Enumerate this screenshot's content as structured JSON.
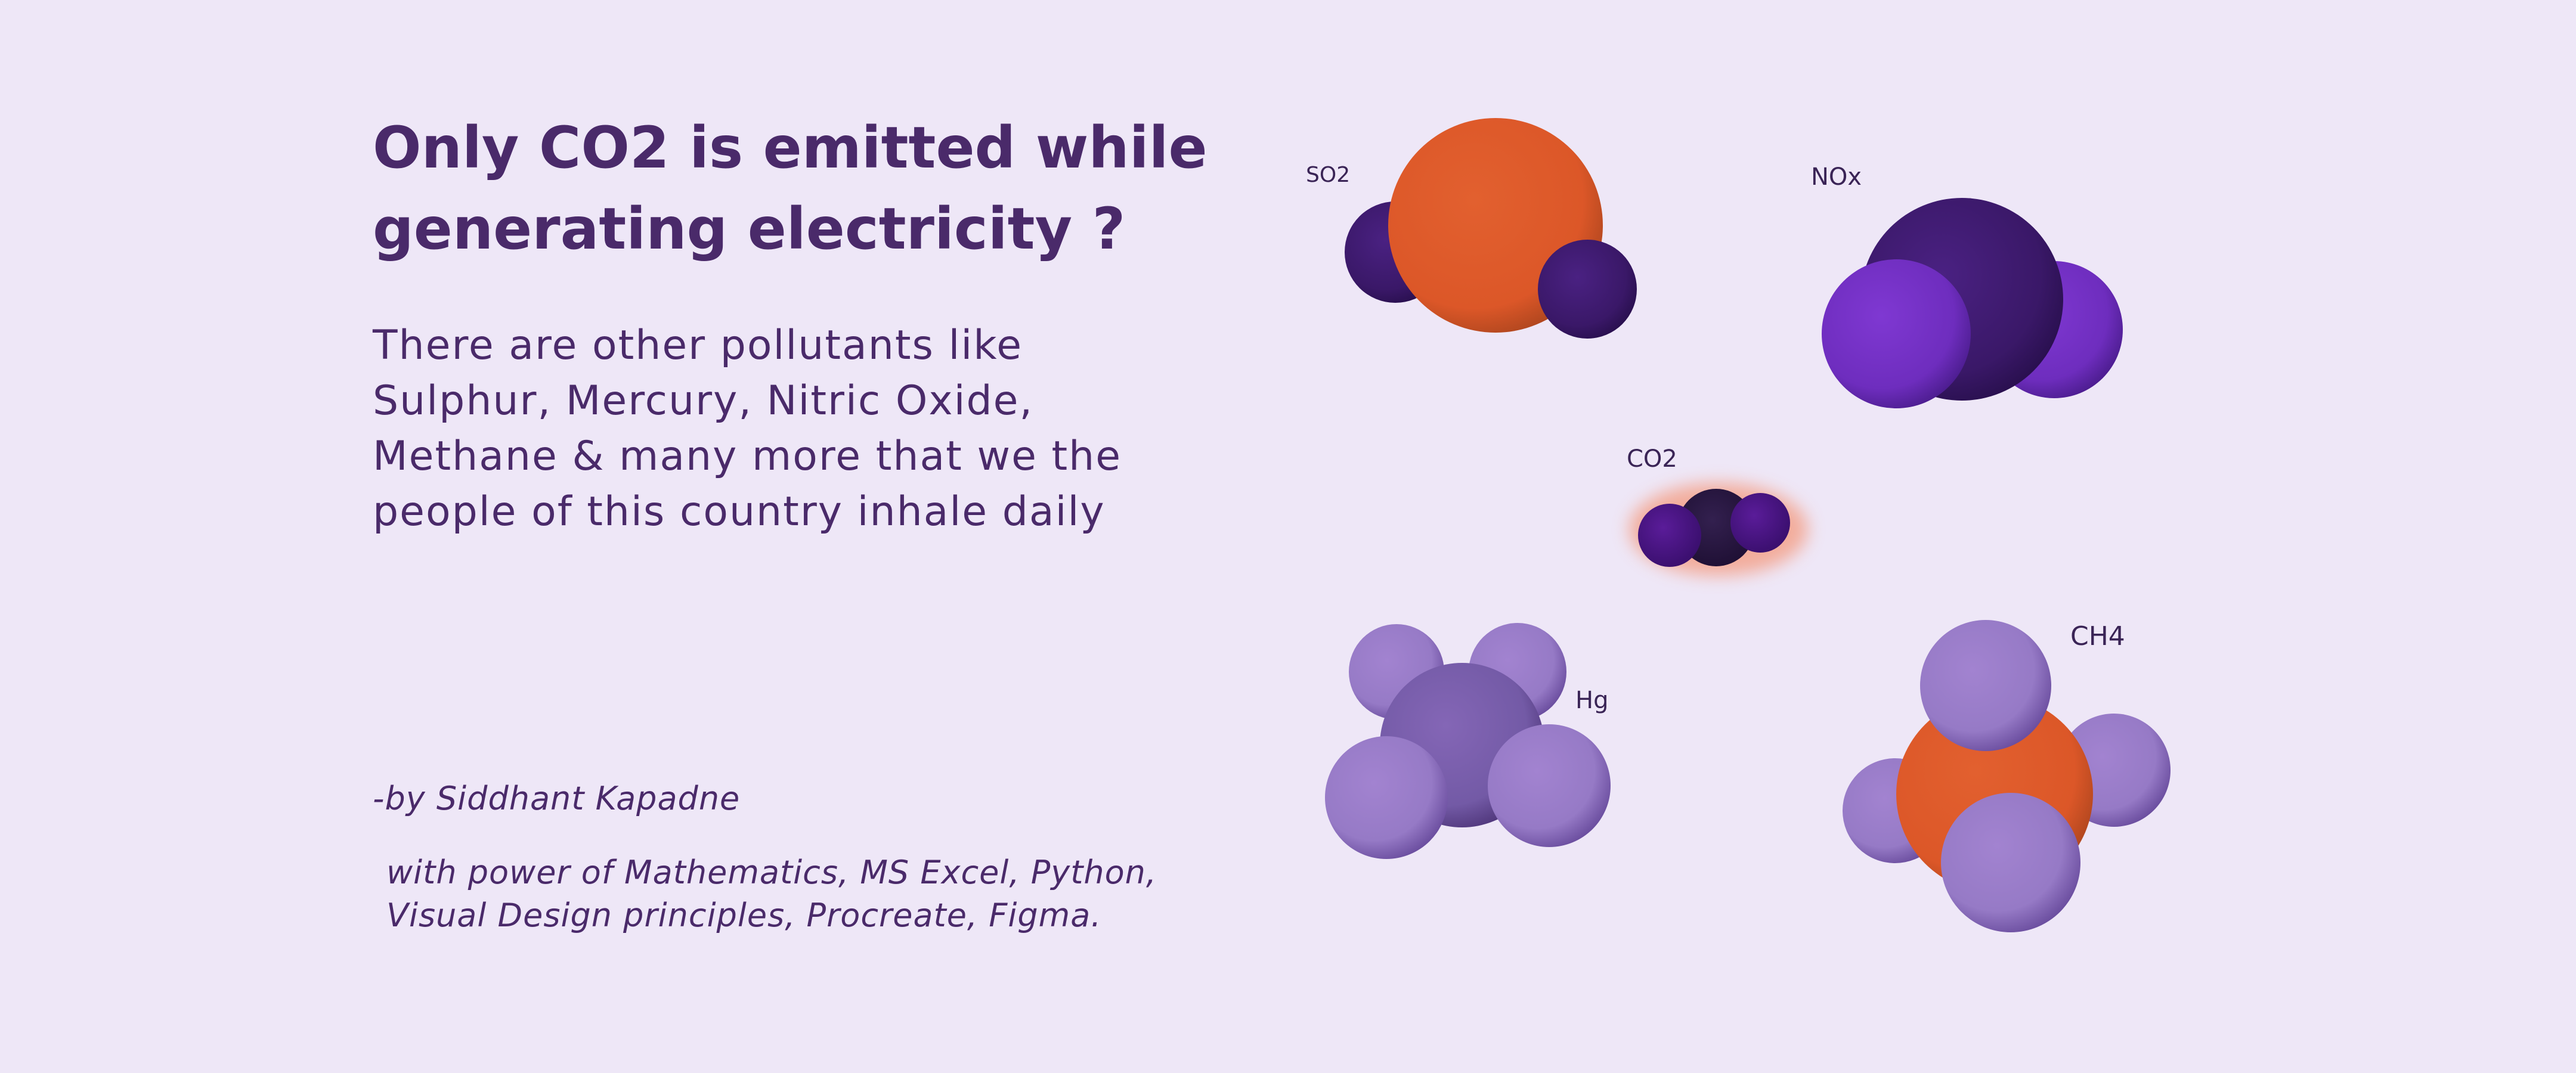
{
  "heading": {
    "line1": "Only CO2 is emitted while",
    "line2": "generating electricity ?"
  },
  "body": {
    "lines": [
      "There are other pollutants like",
      "Sulphur, Mercury, Nitric Oxide,",
      "Methane & many more that we the",
      "people of this country inhale daily"
    ]
  },
  "byline": "-by Siddhant Kapadne",
  "credits": {
    "line1": "with power of Mathematics, MS Excel, Python,",
    "line2": "Visual Design principles, Procreate, Figma."
  },
  "molecules": {
    "so2": {
      "label": "SO2",
      "icon": "so2-molecule-icon"
    },
    "nox": {
      "label": "NOx",
      "icon": "nox-molecule-icon"
    },
    "co2": {
      "label": "CO2",
      "icon": "co2-molecule-icon"
    },
    "hg": {
      "label": "Hg",
      "icon": "hg-molecule-icon"
    },
    "ch4": {
      "label": "CH4",
      "icon": "ch4-molecule-icon"
    }
  },
  "colors": {
    "background": "#EEE7F7",
    "text": "#4A2A6A",
    "orange": "#E05A2B",
    "dark_purple": "#3E1A6E",
    "violet": "#7A35CC",
    "lavender": "#9A78C8"
  }
}
